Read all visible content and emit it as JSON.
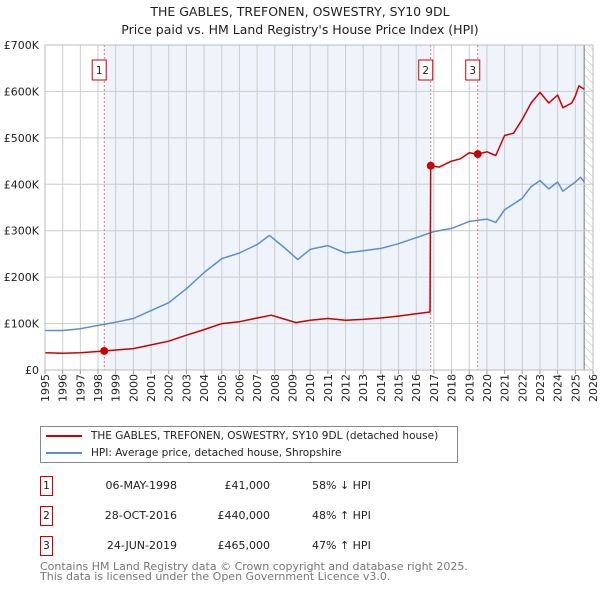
{
  "title": "THE GABLES, TREFONEN, OSWESTRY, SY10 9DL",
  "subtitle": "Price paid vs. HM Land Registry's House Price Index (HPI)",
  "colors": {
    "property": "#cc0000",
    "hpi": "#5b8fd0",
    "shade": "#eef3fc",
    "grid": "#cccccc"
  },
  "chart_data": {
    "type": "line",
    "title": "THE GABLES, TREFONEN, OSWESTRY, SY10 9DL",
    "xlim": [
      1995,
      2026
    ],
    "ylim": [
      0,
      700000
    ],
    "grid": true,
    "legend_placement": "below",
    "x_ticks": [
      "1995",
      "1996",
      "1997",
      "1998",
      "1999",
      "2000",
      "2001",
      "2002",
      "2003",
      "2004",
      "2005",
      "2006",
      "2007",
      "2008",
      "2009",
      "2010",
      "2011",
      "2012",
      "2013",
      "2014",
      "2015",
      "2016",
      "2017",
      "2018",
      "2019",
      "2020",
      "2021",
      "2022",
      "2023",
      "2024",
      "2025",
      "2026"
    ],
    "y_ticks": [
      {
        "v": 0,
        "label": "£0"
      },
      {
        "v": 100000,
        "label": "£100K"
      },
      {
        "v": 200000,
        "label": "£200K"
      },
      {
        "v": 300000,
        "label": "£300K"
      },
      {
        "v": 400000,
        "label": "£400K"
      },
      {
        "v": 500000,
        "label": "£500K"
      },
      {
        "v": 600000,
        "label": "£600K"
      },
      {
        "v": 700000,
        "label": "£700K"
      }
    ],
    "series": [
      {
        "name": "THE GABLES, TREFONEN, OSWESTRY, SY10 9DL (detached house)",
        "color": "#cc0000",
        "x": [
          1995,
          1996,
          1997,
          1998.35,
          1999,
          2000,
          2001,
          2002,
          2003,
          2004,
          2005,
          2006,
          2007,
          2007.8,
          2008.5,
          2009.2,
          2010,
          2011,
          2012,
          2013,
          2014,
          2015,
          2016,
          2016.78,
          2016.82,
          2017.3,
          2018,
          2018.5,
          2019,
          2019.48,
          2020,
          2020.5,
          2021,
          2021.5,
          2022,
          2022.5,
          2023,
          2023.5,
          2024,
          2024.3,
          2024.8,
          2025,
          2025.2,
          2025.5
        ],
        "y": [
          37000,
          36000,
          37000,
          41000,
          43000,
          46000,
          54000,
          62000,
          75000,
          87000,
          100000,
          104000,
          112000,
          118000,
          110000,
          102000,
          107000,
          111000,
          107000,
          109000,
          112000,
          116000,
          121000,
          125000,
          440000,
          437000,
          450000,
          455000,
          468000,
          465000,
          470000,
          462000,
          505000,
          510000,
          540000,
          575000,
          598000,
          575000,
          592000,
          565000,
          575000,
          590000,
          612000,
          605000
        ]
      },
      {
        "name": "HPI: Average price, detached house, Shropshire",
        "color": "#5b8fd0",
        "x": [
          1995,
          1996,
          1997,
          1998,
          1999,
          2000,
          2001,
          2002,
          2003,
          2004,
          2005,
          2006,
          2007,
          2007.7,
          2008.5,
          2009.3,
          2010,
          2011,
          2012,
          2013,
          2014,
          2015,
          2016,
          2017,
          2018,
          2019,
          2020,
          2020.5,
          2021,
          2022,
          2022.5,
          2023,
          2023.5,
          2024,
          2024.3,
          2025,
          2025.3,
          2025.5
        ],
        "y": [
          85000,
          85000,
          89000,
          96000,
          103000,
          111000,
          128000,
          145000,
          175000,
          210000,
          240000,
          252000,
          270000,
          290000,
          265000,
          238000,
          260000,
          268000,
          252000,
          257000,
          262000,
          272000,
          285000,
          298000,
          305000,
          320000,
          325000,
          318000,
          345000,
          370000,
          395000,
          408000,
          390000,
          405000,
          385000,
          405000,
          415000,
          405000
        ]
      }
    ],
    "sales": [
      {
        "label": "1",
        "x": 1998.35,
        "y": 41000,
        "date": "06-MAY-1998",
        "price": "£41,000",
        "hpi_relation": "58% ↓ HPI"
      },
      {
        "label": "2",
        "x": 2016.82,
        "y": 440000,
        "date": "28-OCT-2016",
        "price": "£440,000",
        "hpi_relation": "48% ↑ HPI"
      },
      {
        "label": "3",
        "x": 2019.48,
        "y": 465000,
        "date": "24-JUN-2019",
        "price": "£465,000",
        "hpi_relation": "47% ↑ HPI"
      }
    ],
    "forecast_start": 2025.5
  },
  "legend": {
    "property": "THE GABLES, TREFONEN, OSWESTRY, SY10 9DL (detached house)",
    "hpi": "HPI: Average price, detached house, Shropshire"
  },
  "footer": {
    "line1": "Contains HM Land Registry data © Crown copyright and database right 2025.",
    "line2": "This data is licensed under the Open Government Licence v3.0."
  }
}
